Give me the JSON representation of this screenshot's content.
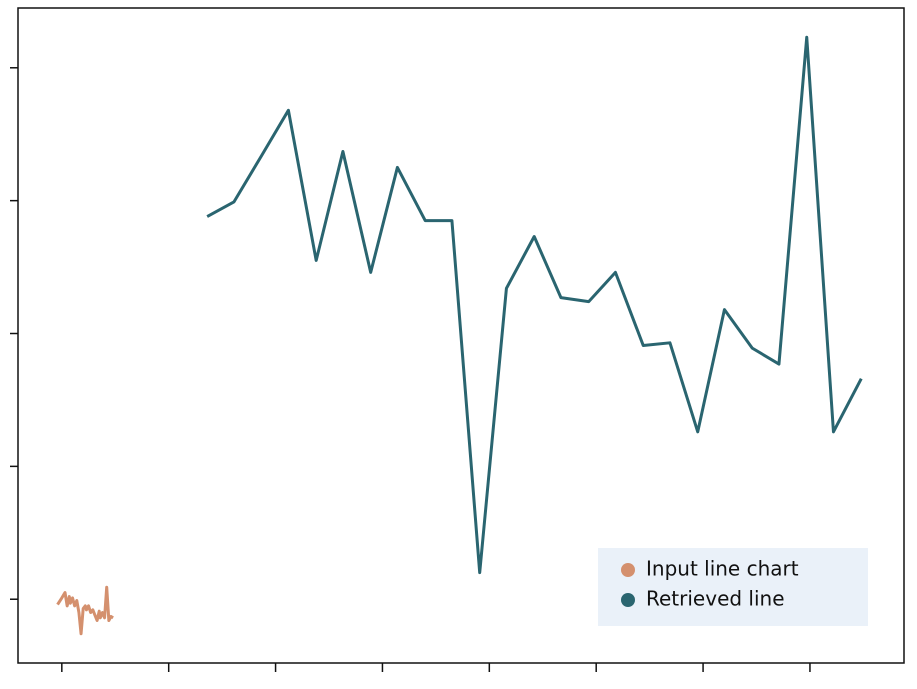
{
  "chart_data": {
    "type": "line",
    "series": [
      {
        "name": "Input line chart",
        "color": "#d4906e",
        "x": [
          -0.04,
          0.0,
          0.03,
          0.05,
          0.07,
          0.08,
          0.1,
          0.12,
          0.14,
          0.16,
          0.18,
          0.2,
          0.22,
          0.23,
          0.25,
          0.27,
          0.29,
          0.31,
          0.33,
          0.35,
          0.36,
          0.38,
          0.4,
          0.42,
          0.44,
          0.46,
          0.48
        ],
        "values": [
          -0.04,
          0.01,
          0.05,
          -0.05,
          0.02,
          -0.03,
          0.01,
          -0.05,
          -0.01,
          -0.1,
          -0.26,
          -0.07,
          -0.05,
          -0.08,
          -0.05,
          -0.1,
          -0.08,
          -0.12,
          -0.16,
          -0.09,
          -0.14,
          -0.1,
          -0.14,
          0.09,
          -0.16,
          -0.13,
          -0.14
        ]
      },
      {
        "name": "Retrieved line",
        "color": "#2a6570",
        "x": [
          1.36,
          1.61,
          1.87,
          2.12,
          2.38,
          2.63,
          2.89,
          3.14,
          3.4,
          3.65,
          3.91,
          4.16,
          4.42,
          4.67,
          4.93,
          5.18,
          5.44,
          5.69,
          5.95,
          6.2,
          6.46,
          6.71,
          6.97,
          7.22,
          7.48
        ],
        "values": [
          2.88,
          2.99,
          3.34,
          3.68,
          2.55,
          3.37,
          2.46,
          3.25,
          2.85,
          2.85,
          0.2,
          2.34,
          2.73,
          2.27,
          2.24,
          2.46,
          1.91,
          1.93,
          1.26,
          2.18,
          1.89,
          1.77,
          4.23,
          1.26,
          1.66
        ]
      }
    ],
    "xlim": [
      -0.41,
      7.88
    ],
    "xticks": [
      0,
      1,
      2,
      3,
      4,
      5,
      6,
      7
    ],
    "ylim": [
      -0.48,
      4.45
    ],
    "yticks": [
      0,
      1,
      2,
      3,
      4
    ],
    "grid": false,
    "legend": "lower right"
  }
}
